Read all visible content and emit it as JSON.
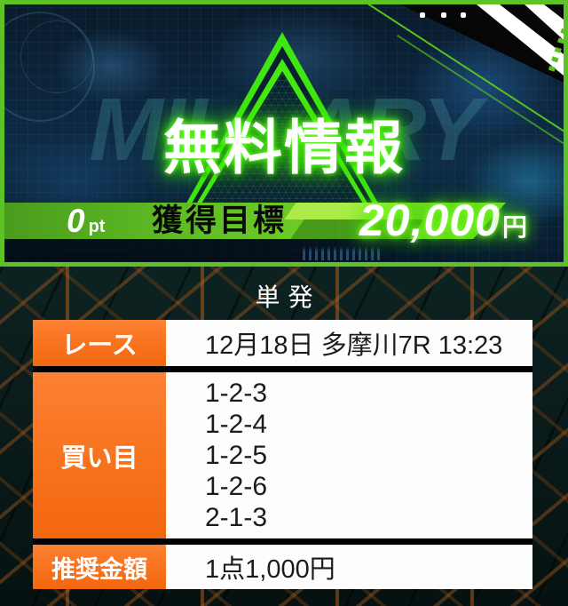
{
  "banner": {
    "title": "無料情報",
    "watermark": "MILITARY",
    "points_value": "0",
    "points_unit": "pt",
    "goal_label": "獲得目標",
    "goal_amount": "20,000",
    "goal_currency": "円"
  },
  "section": {
    "heading": "単発",
    "table": {
      "rows": [
        {
          "label": "レース",
          "value": "12月18日 多摩川7R 13:23"
        },
        {
          "label": "買い目",
          "values": [
            "1-2-3",
            "1-2-4",
            "1-2-5",
            "1-2-6",
            "2-1-3"
          ]
        },
        {
          "label": "推奨金額",
          "value": "1点1,000円"
        }
      ]
    }
  },
  "colors": {
    "banner_border_green": "#5ec125",
    "neon_green": "#46e812",
    "band_green": "#6ccc25",
    "label_orange": "#f8721d",
    "cell_white": "#fdfdfd",
    "background_teal": "#0c2322",
    "pattern_orange": "#ba621e",
    "text_black": "#1b1b1b"
  }
}
